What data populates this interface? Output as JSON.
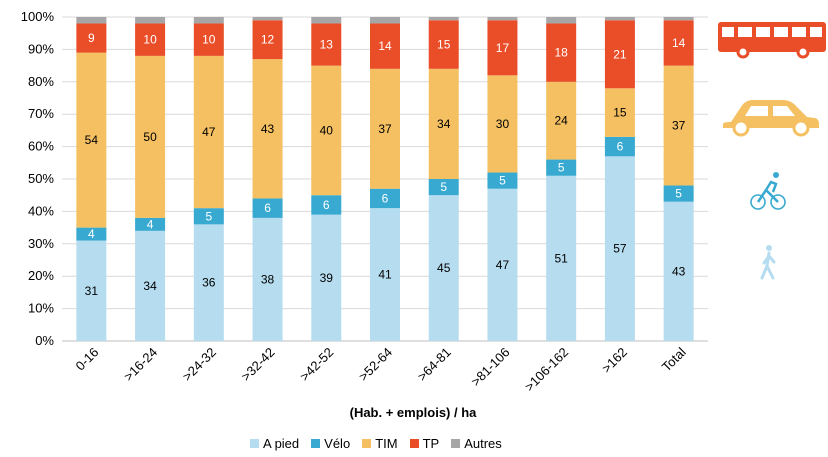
{
  "chart_data": {
    "type": "bar",
    "stacked": true,
    "categories": [
      "0-16",
      ">16-24",
      ">24-32",
      ">32-42",
      ">42-52",
      ">52-64",
      ">64-81",
      ">81-106",
      ">106-162",
      ">162",
      "Total"
    ],
    "series": [
      {
        "name": "A pied",
        "color": "#b6dcef",
        "values": [
          31,
          34,
          36,
          38,
          39,
          41,
          45,
          47,
          51,
          57,
          43
        ]
      },
      {
        "name": "Vélo",
        "color": "#38a9d0",
        "values": [
          4,
          4,
          5,
          6,
          6,
          6,
          5,
          5,
          5,
          6,
          5
        ]
      },
      {
        "name": "TIM",
        "color": "#f4c061",
        "values": [
          54,
          50,
          47,
          43,
          40,
          37,
          34,
          30,
          24,
          15,
          37
        ]
      },
      {
        "name": "TP",
        "color": "#ea4e29",
        "values": [
          9,
          10,
          10,
          12,
          13,
          14,
          15,
          17,
          18,
          21,
          14
        ]
      },
      {
        "name": "Autres",
        "color": "#a6a6a6",
        "values": [
          2,
          2,
          2,
          1,
          2,
          2,
          1,
          1,
          2,
          1,
          1
        ]
      }
    ],
    "ylim": [
      0,
      100
    ],
    "yticks": [
      "0%",
      "10%",
      "20%",
      "30%",
      "40%",
      "50%",
      "60%",
      "70%",
      "80%",
      "90%",
      "100%"
    ],
    "xlabel": "(Hab. + emplois) / ha",
    "grid": true,
    "legend_position": "bottom"
  },
  "icons": [
    "bus-icon",
    "car-icon",
    "cyclist-icon",
    "pedestrian-icon"
  ]
}
